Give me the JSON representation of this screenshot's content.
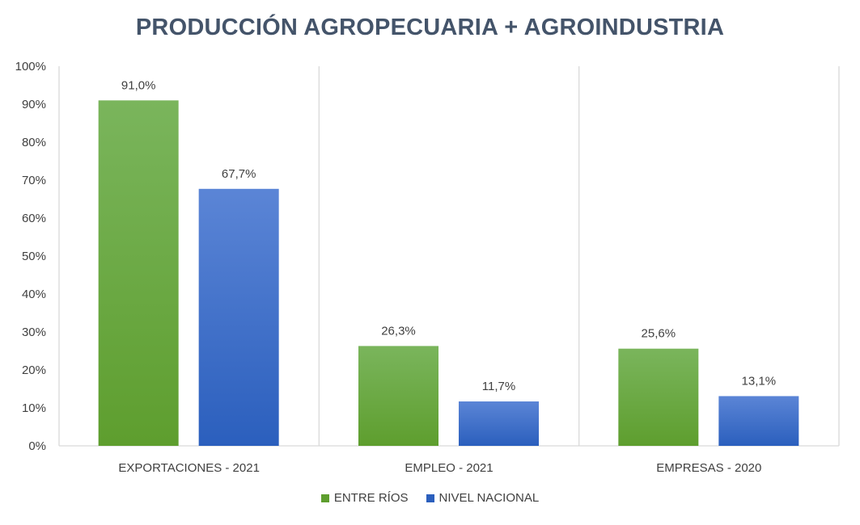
{
  "colors": {
    "entre_rios_top": "#7ab55c",
    "entre_rios_bottom": "#5e9e2e",
    "nacional_top": "#5b85d6",
    "nacional_bottom": "#2b5fbd",
    "title": "#44546a",
    "text": "#404040",
    "grid": "#d9d9d9"
  },
  "chart_data": {
    "type": "bar",
    "title": "PRODUCCIÓN AGROPECUARIA + AGROINDUSTRIA",
    "categories": [
      "EXPORTACIONES - 2021",
      "EMPLEO - 2021",
      "EMPRESAS - 2020"
    ],
    "series": [
      {
        "name": "ENTRE RÍOS",
        "values": [
          91.0,
          26.3,
          25.6
        ],
        "labels": [
          "91,0%",
          "26,3%",
          "25,6%"
        ]
      },
      {
        "name": "NIVEL NACIONAL",
        "values": [
          67.7,
          11.7,
          13.1
        ],
        "labels": [
          "67,7%",
          "11,7%",
          "13,1%"
        ]
      }
    ],
    "y_ticks": [
      "0%",
      "10%",
      "20%",
      "30%",
      "40%",
      "50%",
      "60%",
      "70%",
      "80%",
      "90%",
      "100%"
    ],
    "ylim": [
      0,
      100
    ],
    "grid": "vertical category separators",
    "legend_position": "bottom"
  }
}
